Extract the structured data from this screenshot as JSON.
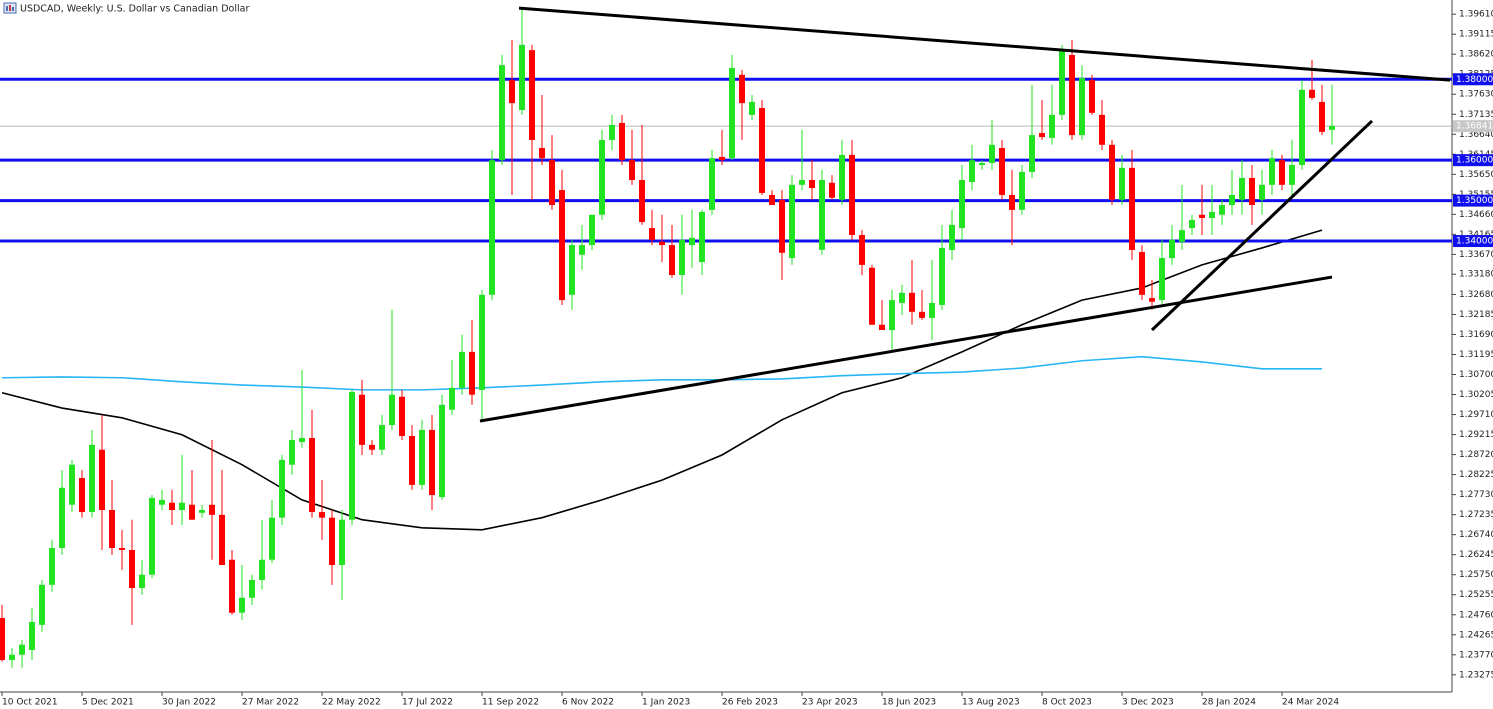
{
  "chart_data": {
    "type": "candlestick",
    "title": "USDCAD, Weekly:  U.S. Dollar vs Canadian Dollar",
    "categories": [
      "10 Oct 2021",
      null,
      null,
      null,
      null,
      null,
      null,
      null,
      "5 Dec 2021",
      null,
      null,
      null,
      null,
      null,
      null,
      null,
      "30 Jan 2022",
      null,
      null,
      null,
      null,
      null,
      null,
      null,
      "27 Mar 2022",
      null,
      null,
      null,
      null,
      null,
      null,
      null,
      "22 May 2022",
      null,
      null,
      null,
      null,
      null,
      null,
      null,
      "17 Jul 2022",
      null,
      null,
      null,
      null,
      null,
      null,
      null,
      "11 Sep 2022",
      null,
      null,
      null,
      null,
      null,
      null,
      null,
      "6 Nov 2022",
      null,
      null,
      null,
      null,
      null,
      null,
      null,
      "1 Jan 2023",
      null,
      null,
      null,
      null,
      null,
      null,
      null,
      "26 Feb 2023",
      null,
      null,
      null,
      null,
      null,
      null,
      null,
      "23 Apr 2023",
      null,
      null,
      null,
      null,
      null,
      null,
      null,
      "18 Jun 2023",
      null,
      null,
      null,
      null,
      null,
      null,
      null,
      "13 Aug 2023",
      null,
      null,
      null,
      null,
      null,
      null,
      null,
      "8 Oct 2023",
      null,
      null,
      null,
      null,
      null,
      null,
      null,
      "3 Dec 2023",
      null,
      null,
      null,
      null,
      null,
      null,
      null,
      "28 Jan 2024",
      null,
      null,
      null,
      null,
      null,
      null,
      null,
      "24 Mar 2024",
      null,
      null,
      null,
      null,
      null
    ],
    "open": [
      1.2468,
      1.2364,
      1.2377,
      1.2389,
      1.2451,
      1.255,
      1.2641,
      1.2748,
      1.2814,
      1.273,
      1.2884,
      1.2735,
      1.2641,
      1.2636,
      1.2542,
      1.2575,
      1.2748,
      1.2753,
      1.2735,
      1.2748,
      1.2728,
      1.2748,
      1.2723,
      1.2612,
      1.2481,
      1.2518,
      1.2562,
      1.2612,
      1.2716,
      1.2847,
      1.2903,
      1.2913,
      1.273,
      1.2716,
      1.2599,
      1.2711,
      1.302,
      1.2896,
      1.2884,
      1.2945,
      1.3015,
      1.2918,
      1.2797,
      1.2933,
      1.2767,
      1.2983,
      1.3037,
      1.3126,
      1.3032,
      1.3267,
      1.36,
      1.3798,
      1.3724,
      1.3872,
      1.363,
      1.36,
      1.3526,
      1.3267,
      1.3366,
      1.339,
      1.3465,
      1.365,
      1.3692,
      1.36,
      1.3551,
      1.3432,
      1.3398,
      1.339,
      1.3316,
      1.339,
      1.3348,
      1.3477,
      1.3608,
      1.3605,
      1.3811,
      1.3712,
      1.3729,
      1.3514,
      1.3502,
      1.3358,
      1.3539,
      1.3551,
      1.3378,
      1.3544,
      1.3502,
      1.3613,
      1.3415,
      1.3334,
      1.3193,
      1.318,
      1.3247,
      1.3272,
      1.3225,
      1.321,
      1.3242,
      1.3378,
      1.3432,
      1.3546,
      1.3588,
      1.3593,
      1.363,
      1.3514,
      1.3477,
      1.3571,
      1.3667,
      1.3655,
      1.3712,
      1.386,
      1.3662,
      1.3798,
      1.3712,
      1.3638,
      1.3502,
      1.3581,
      1.3373,
      1.3259,
      1.3254,
      1.3358,
      1.3398,
      1.3432,
      1.3465,
      1.3457,
      1.3465,
      1.3489,
      1.3502,
      1.3556,
      1.3502,
      1.3539,
      1.36,
      1.3539,
      1.3588,
      1.3774,
      1.3744,
      1.3675
    ],
    "high": [
      1.25,
      1.2394,
      1.2414,
      1.2493,
      1.2562,
      1.2661,
      1.2834,
      1.2859,
      1.2834,
      1.2933,
      1.297,
      1.2809,
      1.2686,
      1.2711,
      1.2612,
      1.2772,
      1.2785,
      1.2785,
      1.2871,
      1.2834,
      1.2748,
      1.2908,
      1.2834,
      1.2636,
      1.2599,
      1.2575,
      1.2711,
      1.276,
      1.2871,
      1.2933,
      1.3081,
      1.2983,
      1.2809,
      1.2735,
      1.2735,
      1.3032,
      1.3057,
      1.2908,
      1.297,
      1.323,
      1.3032,
      1.2945,
      1.2958,
      1.297,
      1.302,
      1.3106,
      1.3168,
      1.3205,
      1.3279,
      1.3625,
      1.386,
      1.3897,
      1.3976,
      1.3885,
      1.3761,
      1.3662,
      1.3576,
      1.3403,
      1.344,
      1.3465,
      1.3675,
      1.3712,
      1.3712,
      1.3675,
      1.3687,
      1.3477,
      1.3465,
      1.344,
      1.3465,
      1.3477,
      1.3477,
      1.3625,
      1.3675,
      1.386,
      1.3823,
      1.3761,
      1.3749,
      1.3526,
      1.3526,
      1.3563,
      1.3675,
      1.36,
      1.3576,
      1.3563,
      1.365,
      1.365,
      1.3427,
      1.3341,
      1.3254,
      1.3279,
      1.3292,
      1.3353,
      1.3279,
      1.3353,
      1.344,
      1.3477,
      1.3588,
      1.3638,
      1.36,
      1.3699,
      1.365,
      1.3576,
      1.3588,
      1.3786,
      1.3749,
      1.3786,
      1.3885,
      1.3897,
      1.3835,
      1.3811,
      1.3749,
      1.365,
      1.3613,
      1.3625,
      1.339,
      1.3304,
      1.3403,
      1.344,
      1.3539,
      1.3465,
      1.3539,
      1.3539,
      1.3502,
      1.3576,
      1.36,
      1.3588,
      1.3576,
      1.3625,
      1.3613,
      1.365,
      1.3798,
      1.3848,
      1.3786,
      1.3786
    ],
    "low": [
      1.236,
      1.2345,
      1.2345,
      1.2364,
      1.2434,
      1.2533,
      1.2624,
      1.273,
      1.2716,
      1.2716,
      1.2636,
      1.2624,
      1.2587,
      1.2451,
      1.2525,
      1.2567,
      1.2735,
      1.2698,
      1.2698,
      1.2711,
      1.2716,
      1.2612,
      1.2599,
      1.2476,
      1.2463,
      1.25,
      1.2538,
      1.2604,
      1.2698,
      1.2822,
      1.2889,
      1.2716,
      1.2661,
      1.255,
      1.2513,
      1.2698,
      1.2871,
      1.2871,
      1.2871,
      1.2933,
      1.2908,
      1.2785,
      1.2785,
      1.2735,
      1.276,
      1.297,
      1.302,
      1.2995,
      1.2958,
      1.3254,
      1.3588,
      1.3514,
      1.3712,
      1.3502,
      1.3588,
      1.3477,
      1.3242,
      1.323,
      1.3329,
      1.3378,
      1.3452,
      1.3625,
      1.3588,
      1.3539,
      1.344,
      1.339,
      1.3348,
      1.3309,
      1.3267,
      1.3334,
      1.3316,
      1.3465,
      1.3588,
      1.36,
      1.365,
      1.3699,
      1.3514,
      1.3489,
      1.3304,
      1.3341,
      1.3526,
      1.3502,
      1.3366,
      1.3502,
      1.3489,
      1.3403,
      1.3316,
      1.3193,
      1.318,
      1.3131,
      1.3217,
      1.3193,
      1.3205,
      1.3155,
      1.323,
      1.3353,
      1.3403,
      1.3526,
      1.3576,
      1.3576,
      1.3502,
      1.339,
      1.3465,
      1.3556,
      1.365,
      1.3638,
      1.3699,
      1.365,
      1.365,
      1.3712,
      1.3625,
      1.3489,
      1.3489,
      1.3353,
      1.3254,
      1.323,
      1.3242,
      1.3341,
      1.3378,
      1.3415,
      1.3415,
      1.3415,
      1.344,
      1.3465,
      1.3465,
      1.344,
      1.3465,
      1.3514,
      1.3526,
      1.3507,
      1.3576,
      1.3749,
      1.3662,
      1.3638
    ],
    "close": [
      1.2364,
      1.2377,
      1.2402,
      1.2458,
      1.255,
      1.2641,
      1.279,
      1.2847,
      1.273,
      1.2896,
      1.2735,
      1.2641,
      1.2636,
      1.2542,
      1.2575,
      1.2765,
      1.276,
      1.2735,
      1.2753,
      1.2711,
      1.2735,
      1.2723,
      1.2599,
      1.2481,
      1.2518,
      1.2562,
      1.2612,
      1.2716,
      1.2859,
      1.2908,
      1.2913,
      1.273,
      1.2716,
      1.2599,
      1.2711,
      1.3027,
      1.2896,
      1.2884,
      1.2945,
      1.302,
      1.2918,
      1.2797,
      1.2933,
      1.2772,
      1.2995,
      1.3037,
      1.3126,
      1.302,
      1.3267,
      1.36,
      1.3835,
      1.3741,
      1.3885,
      1.365,
      1.3605,
      1.3489,
      1.3254,
      1.339,
      1.339,
      1.3465,
      1.365,
      1.3687,
      1.36,
      1.3551,
      1.3447,
      1.3403,
      1.339,
      1.3316,
      1.3403,
      1.3408,
      1.3472,
      1.3605,
      1.36,
      1.3828,
      1.3741,
      1.3744,
      1.3519,
      1.3489,
      1.3371,
      1.3539,
      1.3551,
      1.3531,
      1.3551,
      1.3507,
      1.3613,
      1.3415,
      1.3341,
      1.3193,
      1.318,
      1.3254,
      1.3272,
      1.3225,
      1.321,
      1.3247,
      1.3383,
      1.344,
      1.3551,
      1.36,
      1.3593,
      1.3638,
      1.3514,
      1.3477,
      1.3571,
      1.3662,
      1.3657,
      1.3712,
      1.3872,
      1.3662,
      1.3803,
      1.3717,
      1.3638,
      1.3502,
      1.3581,
      1.3378,
      1.3267,
      1.325,
      1.3358,
      1.3403,
      1.3427,
      1.3452,
      1.3457,
      1.3472,
      1.3489,
      1.3514,
      1.3556,
      1.3489,
      1.3539,
      1.3605,
      1.3539,
      1.3588,
      1.3774,
      1.3754,
      1.367,
      1.3685
    ],
    "up_color": "#22e322",
    "down_color": "#ff0000",
    "ylim": [
      1.2285,
      1.3996
    ],
    "yticks": [
      {
        "value": 1.3961,
        "label": "1.39610"
      },
      1.39115,
      {
        "value": 1.3862,
        "label": "1.38620"
      },
      1.38125,
      {
        "value": 1.3763,
        "label": "1.37630"
      },
      1.37135,
      {
        "value": 1.3664,
        "label": "1.36640"
      },
      1.36145,
      {
        "value": 1.3565,
        "label": "1.35650"
      },
      1.35155,
      {
        "value": 1.3466,
        "label": "1.34660"
      },
      1.34165,
      {
        "value": 1.3367,
        "label": "1.33670"
      },
      {
        "value": 1.3318,
        "label": "1.33180"
      },
      {
        "value": 1.3268,
        "label": "1.32680"
      },
      1.32185,
      {
        "value": 1.3169,
        "label": "1.31690"
      },
      1.31195,
      {
        "value": 1.307,
        "label": "1.30700"
      },
      1.30205,
      {
        "value": 1.2971,
        "label": "1.29710"
      },
      1.29215,
      {
        "value": 1.2872,
        "label": "1.28720"
      },
      1.28225,
      {
        "value": 1.2773,
        "label": "1.27730"
      },
      1.27235,
      {
        "value": 1.2674,
        "label": "1.26740"
      },
      1.26245,
      {
        "value": 1.2575,
        "label": "1.25750"
      },
      1.25255,
      {
        "value": 1.2476,
        "label": "1.24760"
      },
      1.24265,
      {
        "value": 1.2377,
        "label": "1.23770"
      },
      1.23275
    ],
    "overlays": [
      {
        "color": "#000000",
        "x": [
          0,
          6,
          12,
          18,
          24,
          30,
          36,
          42,
          48,
          54,
          60,
          66,
          72,
          78,
          84,
          90,
          96,
          102,
          108,
          114,
          120,
          126,
          132
        ],
        "values": [
          1.3025,
          1.2987,
          1.2963,
          1.2921,
          1.2847,
          1.276,
          1.2711,
          1.2691,
          1.2686,
          1.2716,
          1.276,
          1.2809,
          1.2871,
          1.2958,
          1.3025,
          1.3062,
          1.3126,
          1.3193,
          1.3254,
          1.3284,
          1.3341,
          1.3383,
          1.3427
        ]
      },
      {
        "color": "#29b6f6",
        "x": [
          0,
          6,
          12,
          18,
          24,
          30,
          36,
          42,
          48,
          54,
          60,
          66,
          72,
          78,
          84,
          90,
          96,
          102,
          108,
          114,
          120,
          126,
          132
        ],
        "values": [
          1.3062,
          1.3064,
          1.3062,
          1.3052,
          1.3044,
          1.3039,
          1.3032,
          1.3032,
          1.3037,
          1.3044,
          1.3052,
          1.3057,
          1.3057,
          1.3059,
          1.3067,
          1.3072,
          1.3076,
          1.3086,
          1.3104,
          1.3114,
          1.3101,
          1.3084,
          1.3084
        ]
      }
    ],
    "trendlines": [
      {
        "color": "#000000",
        "x": [
          51.7,
          144.8
        ],
        "values": [
          1.3976,
          1.3798
        ]
      },
      {
        "color": "#000000",
        "x": [
          47.8,
          133
        ],
        "values": [
          1.2955,
          1.3311
        ]
      },
      {
        "color": "#000000",
        "x": [
          115,
          137
        ],
        "values": [
          1.318,
          1.3697
        ]
      }
    ],
    "levels": [
      {
        "value": 1.38,
        "label": "1.38000",
        "color": "#1010ee"
      },
      {
        "value": 1.36,
        "label": "1.36000",
        "color": "#1010ee"
      },
      {
        "value": 1.35,
        "label": "1.35000",
        "color": "#1010ee"
      },
      {
        "value": 1.34,
        "label": "1.34000",
        "color": "#1010ee"
      }
    ],
    "last_price": {
      "value": 1.36841,
      "label": "1.36841"
    }
  }
}
